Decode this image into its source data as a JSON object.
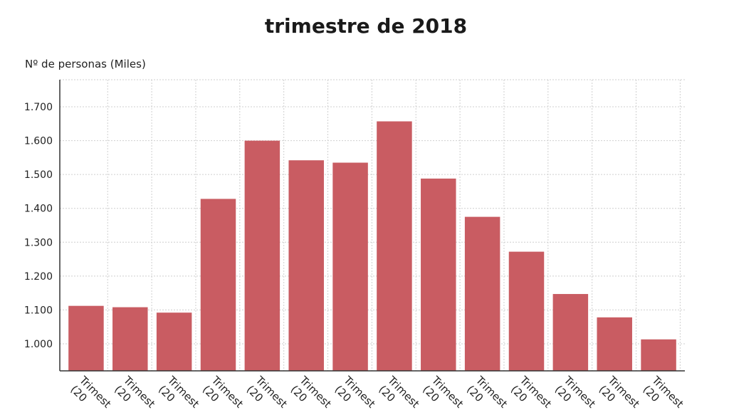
{
  "chart_data": {
    "type": "bar",
    "title_lines": [
      "",
      "trimestre de 2018"
    ],
    "ylabel": "Nº de personas (Miles)",
    "xlabel": "",
    "ylim": [
      920,
      1780
    ],
    "yticks": [
      1000,
      1100,
      1200,
      1300,
      1400,
      1500,
      1600,
      1700
    ],
    "ytick_labels": [
      "1.000",
      "1.100",
      "1.200",
      "1.300",
      "1.400",
      "1.500",
      "1.600",
      "1.700"
    ],
    "grid": true,
    "bar_color": "#c95c62",
    "categories": [
      "Trimest (20",
      "Trimest (20",
      "Trimest (20",
      "Trimest (20",
      "Trimest (20",
      "Trimest (20",
      "Trimest (20",
      "Trimest (20",
      "Trimest (20",
      "Trimest (20",
      "Trimest (20",
      "Trimest (20",
      "Trimest (20",
      "Trimest (20"
    ],
    "values": [
      1112,
      1108,
      1092,
      1428,
      1600,
      1542,
      1535,
      1657,
      1488,
      1375,
      1272,
      1147,
      1078,
      1013
    ]
  }
}
